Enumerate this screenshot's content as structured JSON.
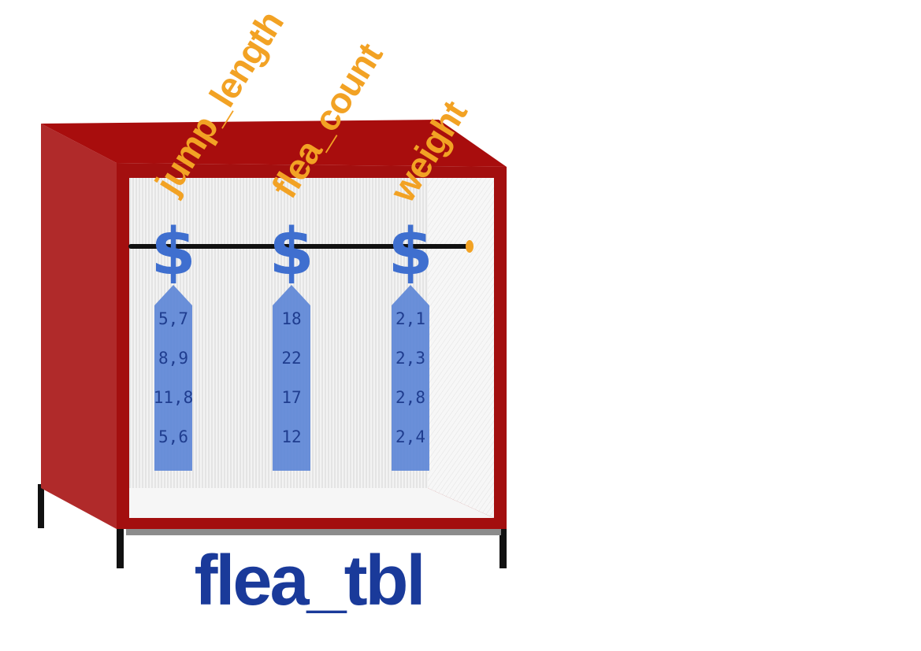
{
  "table_name": "flea_tbl",
  "columns": [
    {
      "name": "jump_length",
      "values": [
        "5,7",
        "8,9",
        "11,8",
        "5,6"
      ]
    },
    {
      "name": "flea_count",
      "values": [
        "18",
        "22",
        "17",
        "12"
      ]
    },
    {
      "name": "weight",
      "values": [
        "2,1",
        "2,3",
        "2,8",
        "2,4"
      ]
    }
  ],
  "hanger_glyph": "$",
  "colors": {
    "cabinet_red": "#a30f0f",
    "cabinet_side": "#b02a2a",
    "column_label": "#f2a224",
    "tag_blue": "#5b84d6",
    "hanger_blue": "#3f6fcf",
    "value_ink": "#1f3d8f",
    "title_blue": "#1a3a9a",
    "rod": "#111111"
  }
}
